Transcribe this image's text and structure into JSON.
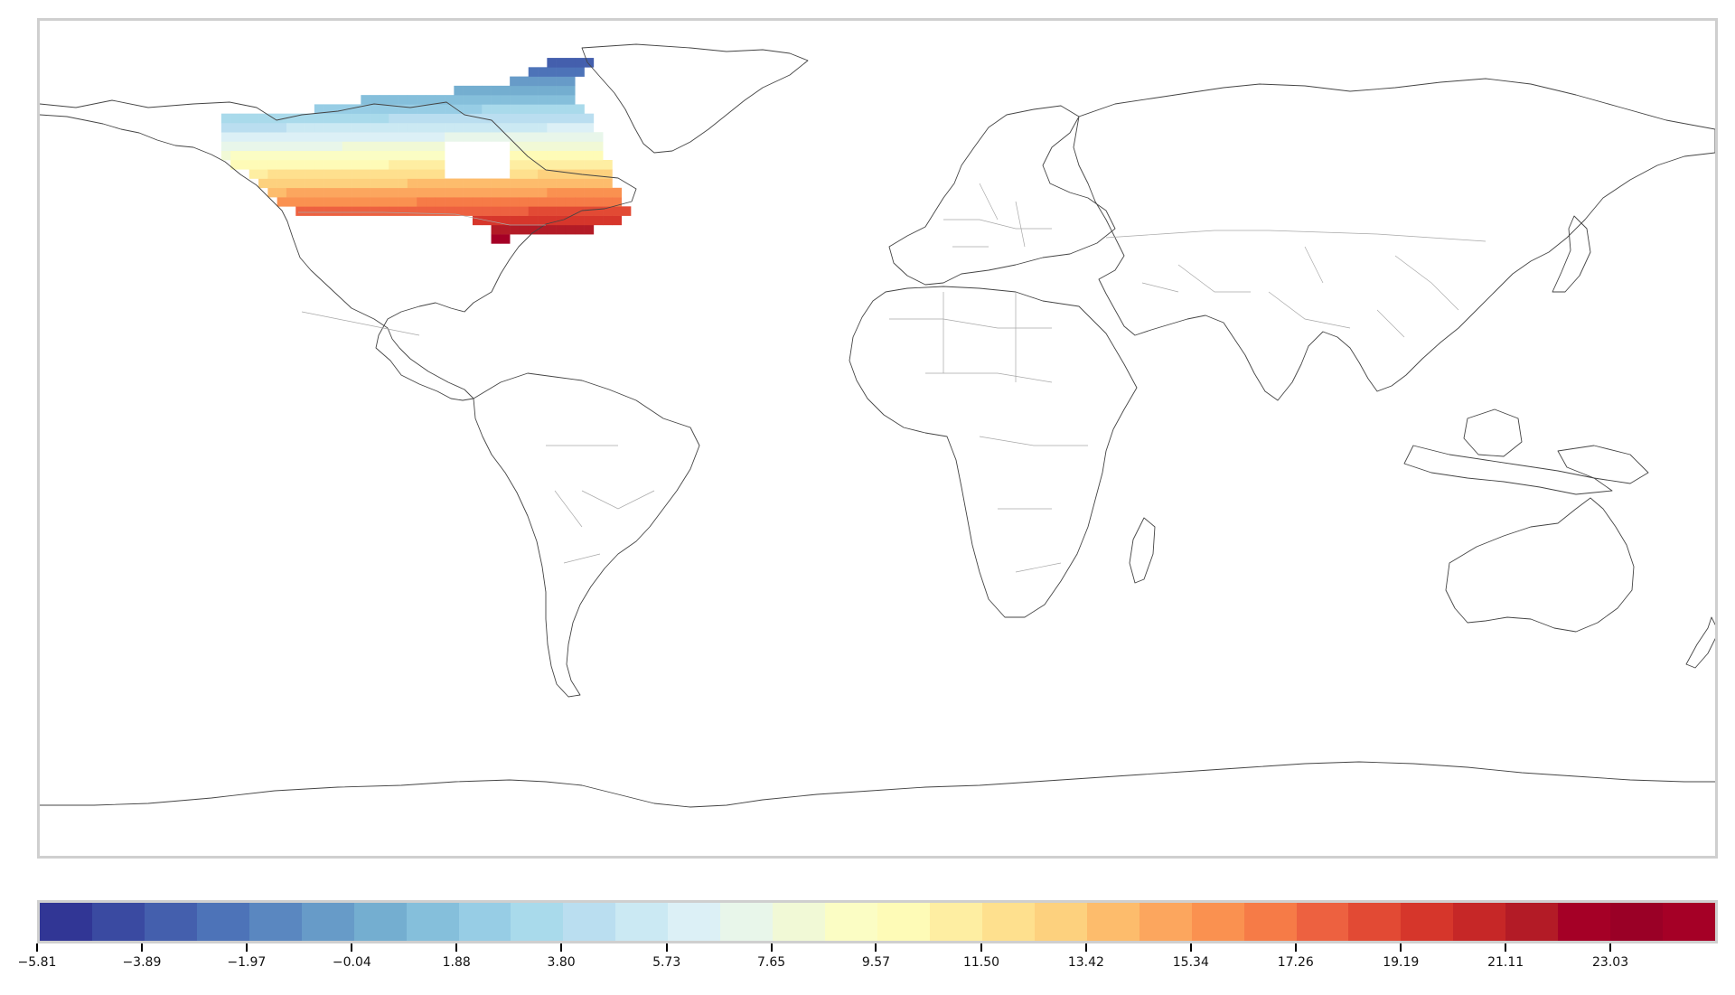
{
  "map": {
    "projection": "plate-carree",
    "lon_range": [
      -180,
      180
    ],
    "lat_range": [
      -90,
      90
    ],
    "frame_color": "#cfcfcf",
    "coastline_color": "#111111",
    "border_color": "#999999",
    "field": {
      "region": "Canada",
      "lon_range": [
        -141,
        -52
      ],
      "lat_range": [
        42,
        83
      ],
      "grid_spacing_deg": 2,
      "value_at_south": 23.0,
      "value_at_north": -5.8
    }
  },
  "colorbar": {
    "colormap": "RdYlBu_r",
    "min": -5.81,
    "max": 25.0,
    "n_bins": 32,
    "colors": [
      "#313695",
      "#3a4aa1",
      "#445fad",
      "#4d73b8",
      "#5a87c0",
      "#679bc8",
      "#74aed0",
      "#85bfdb",
      "#97cde5",
      "#a9daeb",
      "#badef0",
      "#cbe9f3",
      "#dcf0f6",
      "#e8f6ea",
      "#f1f9d6",
      "#fbfdc4",
      "#fefbb7",
      "#feeea2",
      "#fee08e",
      "#fdd17e",
      "#fdbc6c",
      "#fca65e",
      "#fa9150",
      "#f67b47",
      "#ed6140",
      "#e24a34",
      "#d6362b",
      "#c62727",
      "#b31b26",
      "#a50026",
      "#9a0026",
      "#a50026"
    ],
    "ticks": [
      "-5.81",
      "-3.89",
      "-1.97",
      "-0.04",
      "1.88",
      "3.80",
      "5.73",
      "7.65",
      "9.57",
      "11.50",
      "13.42",
      "15.34",
      "17.26",
      "19.19",
      "21.11",
      "23.03"
    ],
    "tick_values": [
      -5.81,
      -3.89,
      -1.97,
      -0.04,
      1.88,
      3.8,
      5.73,
      7.65,
      9.57,
      11.5,
      13.42,
      15.34,
      17.26,
      19.19,
      21.11,
      23.03
    ]
  }
}
